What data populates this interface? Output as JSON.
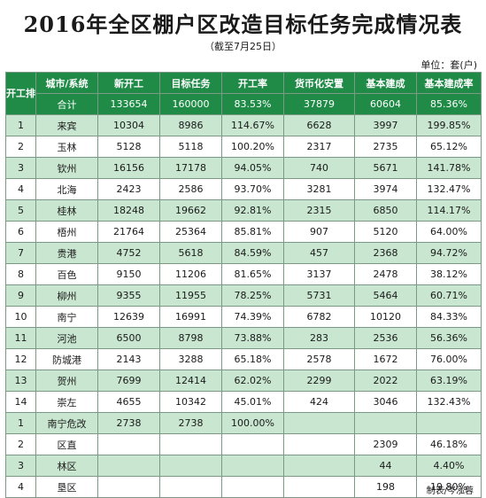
{
  "header": {
    "title": "2016年全区棚户区改造目标任务完成情况表",
    "subtitle": "（截至7月25日）",
    "unit": "单位：套(户)"
  },
  "table": {
    "rank_header": "开工排名",
    "columns": [
      "城市/系统",
      "新开工",
      "目标任务",
      "开工率",
      "货币化安置",
      "基本建成",
      "基本建成率"
    ],
    "total": [
      "合计",
      "133654",
      "160000",
      "83.53%",
      "37879",
      "60604",
      "85.36%"
    ],
    "rows": [
      [
        "1",
        "来宾",
        "10304",
        "8986",
        "114.67%",
        "6628",
        "3997",
        "199.85%"
      ],
      [
        "2",
        "玉林",
        "5128",
        "5118",
        "100.20%",
        "2317",
        "2735",
        "65.12%"
      ],
      [
        "3",
        "钦州",
        "16156",
        "17178",
        "94.05%",
        "740",
        "5671",
        "141.78%"
      ],
      [
        "4",
        "北海",
        "2423",
        "2586",
        "93.70%",
        "3281",
        "3974",
        "132.47%"
      ],
      [
        "5",
        "桂林",
        "18248",
        "19662",
        "92.81%",
        "2315",
        "6850",
        "114.17%"
      ],
      [
        "6",
        "梧州",
        "21764",
        "25364",
        "85.81%",
        "907",
        "5120",
        "64.00%"
      ],
      [
        "7",
        "贵港",
        "4752",
        "5618",
        "84.59%",
        "457",
        "2368",
        "94.72%"
      ],
      [
        "8",
        "百色",
        "9150",
        "11206",
        "81.65%",
        "3137",
        "2478",
        "38.12%"
      ],
      [
        "9",
        "柳州",
        "9355",
        "11955",
        "78.25%",
        "5731",
        "5464",
        "60.71%"
      ],
      [
        "10",
        "南宁",
        "12639",
        "16991",
        "74.39%",
        "6782",
        "10120",
        "84.33%"
      ],
      [
        "11",
        "河池",
        "6500",
        "8798",
        "73.88%",
        "283",
        "2536",
        "56.36%"
      ],
      [
        "12",
        "防城港",
        "2143",
        "3288",
        "65.18%",
        "2578",
        "1672",
        "76.00%"
      ],
      [
        "13",
        "贺州",
        "7699",
        "12414",
        "62.02%",
        "2299",
        "2022",
        "63.19%"
      ],
      [
        "14",
        "崇左",
        "4655",
        "10342",
        "45.01%",
        "424",
        "3046",
        "132.43%"
      ],
      [
        "1",
        "南宁危改",
        "2738",
        "2738",
        "100.00%",
        "",
        "",
        ""
      ],
      [
        "2",
        "区直",
        "",
        "",
        "",
        "",
        "2309",
        "46.18%"
      ],
      [
        "3",
        "林区",
        "",
        "",
        "",
        "",
        "44",
        "4.40%"
      ],
      [
        "4",
        "垦区",
        "",
        "",
        "",
        "",
        "198",
        "19.80%"
      ]
    ]
  },
  "footer": {
    "credit": "制表/岑泓蓉"
  },
  "colors": {
    "header_green": "#1f8b47",
    "stripe_green": "#c9e6d0"
  }
}
